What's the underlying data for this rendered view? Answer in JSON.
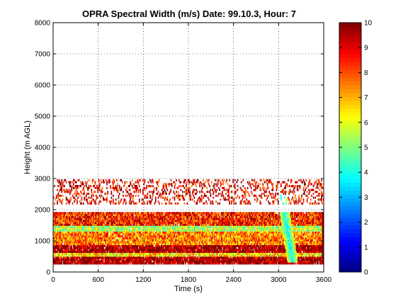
{
  "chart_data": {
    "type": "heatmap",
    "title": "OPRA Spectral Width (m/s)  Date: 99.10.3, Hour: 7",
    "xlabel": "Time (s)",
    "ylabel": "Height (m AGL)",
    "xlim": [
      0,
      3600
    ],
    "ylim": [
      0,
      8000
    ],
    "xticks": [
      "0",
      "600",
      "1200",
      "1800",
      "2400",
      "3000",
      "3600"
    ],
    "yticks": [
      "0",
      "1000",
      "2000",
      "3000",
      "4000",
      "5000",
      "6000",
      "7000",
      "8000"
    ],
    "grid": true,
    "colorbar": {
      "range": [
        0,
        10
      ],
      "ticks": [
        "0",
        "1",
        "2",
        "3",
        "4",
        "5",
        "6",
        "7",
        "8",
        "9",
        "10"
      ],
      "colormap": "jet"
    },
    "height_bands": [
      {
        "height_range": [
          250,
          500
        ],
        "typical_value": 9.7,
        "description": "dense dark red"
      },
      {
        "height_range": [
          500,
          650
        ],
        "typical_value": 6.5,
        "description": "yellow/orange"
      },
      {
        "height_range": [
          650,
          900
        ],
        "typical_value": 9.8,
        "description": "dense dark red"
      },
      {
        "height_range": [
          900,
          1300
        ],
        "typical_value": 7.5,
        "description": "mixed yellow/orange/red"
      },
      {
        "height_range": [
          1300,
          1500
        ],
        "typical_value": 5.5,
        "description": "yellow/green"
      },
      {
        "height_range": [
          1500,
          1950
        ],
        "typical_value": 8.5,
        "description": "orange/red"
      },
      {
        "height_range": [
          1950,
          2150
        ],
        "typical_value": null,
        "description": "gap (no data)"
      },
      {
        "height_range": [
          2150,
          3000
        ],
        "typical_value": 9.0,
        "description": "sparse red/orange"
      }
    ],
    "features": [
      {
        "time_range": [
          3000,
          3250
        ],
        "height_range": [
          300,
          2500
        ],
        "min_value": 3,
        "description": "low spectral width plume (cyan/green)"
      }
    ]
  }
}
